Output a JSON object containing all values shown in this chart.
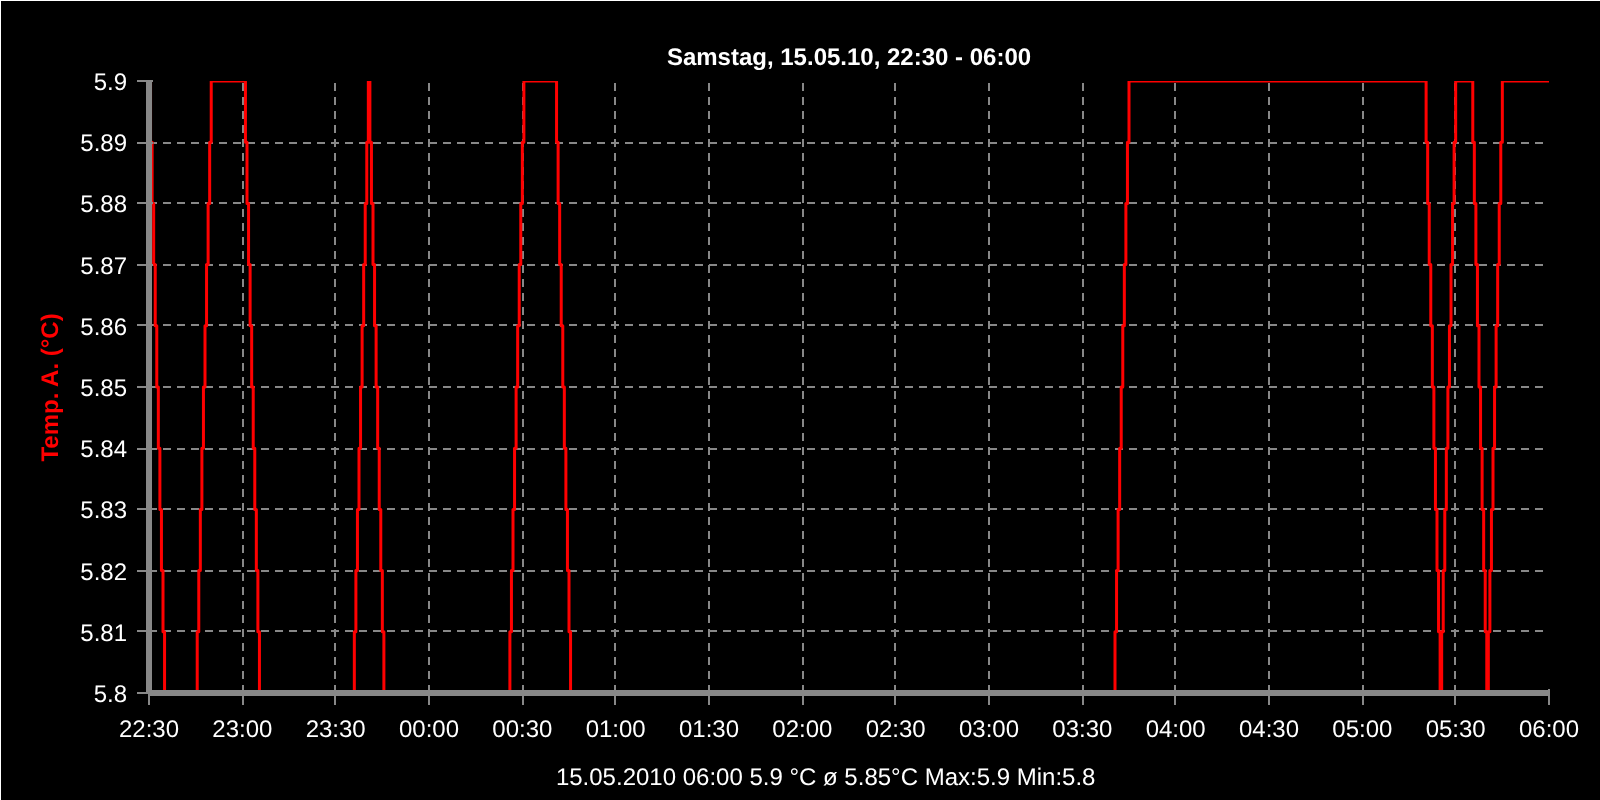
{
  "chart_data": {
    "type": "step",
    "title": "Samstag, 15.05.10, 22:30 - 06:00",
    "ylabel": "Temp. A. (°C)",
    "annotations": [
      "15.05.2010  06:00   5.9 °C   ø 5.85°C  Max:5.9  Min:5.8"
    ],
    "xlim": [
      "2010-05-15T22:30",
      "2010-05-16T06:00"
    ],
    "xticks": [
      {
        "value": "2010-05-15T22:30",
        "label": "22:30"
      },
      {
        "value": "2010-05-15T23:00",
        "label": "23:00"
      },
      {
        "value": "2010-05-15T23:30",
        "label": "23:30"
      },
      {
        "value": "2010-05-16T00:00",
        "label": "00:00"
      },
      {
        "value": "2010-05-16T00:30",
        "label": "00:30"
      },
      {
        "value": "2010-05-16T01:00",
        "label": "01:00"
      },
      {
        "value": "2010-05-16T01:30",
        "label": "01:30"
      },
      {
        "value": "2010-05-16T02:00",
        "label": "02:00"
      },
      {
        "value": "2010-05-16T02:30",
        "label": "02:30"
      },
      {
        "value": "2010-05-16T03:00",
        "label": "03:00"
      },
      {
        "value": "2010-05-16T03:30",
        "label": "03:30"
      },
      {
        "value": "2010-05-16T04:00",
        "label": "04:00"
      },
      {
        "value": "2010-05-16T04:30",
        "label": "04:30"
      },
      {
        "value": "2010-05-16T05:00",
        "label": "05:00"
      },
      {
        "value": "2010-05-16T05:30",
        "label": "05:30"
      },
      {
        "value": "2010-05-16T06:00",
        "label": "06:00"
      }
    ],
    "ylim": [
      5.8,
      5.9
    ],
    "yticks": [
      5.8,
      5.81,
      5.82,
      5.83,
      5.84,
      5.85,
      5.86,
      5.87,
      5.88,
      5.89,
      5.9
    ],
    "grid": true,
    "line_style": "solid",
    "series": [
      {
        "color": "#ff0000",
        "x": [
          "2010-05-15T22:30:00",
          "2010-05-15T22:30:30",
          "2010-05-15T22:31:00",
          "2010-05-15T22:31:30",
          "2010-05-15T22:32:00",
          "2010-05-15T22:32:30",
          "2010-05-15T22:33:00",
          "2010-05-15T22:33:30",
          "2010-05-15T22:34:00",
          "2010-05-15T22:34:30",
          "2010-05-15T22:35:00",
          "2010-05-15T22:45:30",
          "2010-05-15T22:46:00",
          "2010-05-15T22:46:30",
          "2010-05-15T22:47:00",
          "2010-05-15T22:47:30",
          "2010-05-15T22:48:00",
          "2010-05-15T22:48:30",
          "2010-05-15T22:49:00",
          "2010-05-15T22:49:30",
          "2010-05-15T22:50:00",
          "2010-05-15T23:01:00",
          "2010-05-15T23:01:30",
          "2010-05-15T23:02:00",
          "2010-05-15T23:02:30",
          "2010-05-15T23:03:00",
          "2010-05-15T23:03:30",
          "2010-05-15T23:04:00",
          "2010-05-15T23:04:30",
          "2010-05-15T23:05:00",
          "2010-05-15T23:05:30",
          "2010-05-15T23:36:00",
          "2010-05-15T23:36:30",
          "2010-05-15T23:37:00",
          "2010-05-15T23:37:30",
          "2010-05-15T23:38:00",
          "2010-05-15T23:38:30",
          "2010-05-15T23:39:00",
          "2010-05-15T23:39:30",
          "2010-05-15T23:40:00",
          "2010-05-15T23:40:30",
          "2010-05-15T23:41:00",
          "2010-05-15T23:41:30",
          "2010-05-15T23:42:00",
          "2010-05-15T23:42:30",
          "2010-05-15T23:43:00",
          "2010-05-15T23:43:30",
          "2010-05-15T23:44:00",
          "2010-05-15T23:44:30",
          "2010-05-15T23:45:00",
          "2010-05-15T23:45:30",
          "2010-05-16T00:26:00",
          "2010-05-16T00:26:30",
          "2010-05-16T00:27:00",
          "2010-05-16T00:27:30",
          "2010-05-16T00:28:00",
          "2010-05-16T00:28:30",
          "2010-05-16T00:29:00",
          "2010-05-16T00:29:30",
          "2010-05-16T00:30:00",
          "2010-05-16T00:30:30",
          "2010-05-16T00:41:00",
          "2010-05-16T00:41:30",
          "2010-05-16T00:42:00",
          "2010-05-16T00:42:30",
          "2010-05-16T00:43:00",
          "2010-05-16T00:43:30",
          "2010-05-16T00:44:00",
          "2010-05-16T00:44:30",
          "2010-05-16T00:45:00",
          "2010-05-16T00:45:30",
          "2010-05-16T03:40:30",
          "2010-05-16T03:41:00",
          "2010-05-16T03:41:30",
          "2010-05-16T03:42:00",
          "2010-05-16T03:42:30",
          "2010-05-16T03:43:00",
          "2010-05-16T03:43:30",
          "2010-05-16T03:44:00",
          "2010-05-16T03:44:30",
          "2010-05-16T03:45:00",
          "2010-05-16T05:20:30",
          "2010-05-16T05:21:00",
          "2010-05-16T05:21:30",
          "2010-05-16T05:22:00",
          "2010-05-16T05:22:30",
          "2010-05-16T05:23:00",
          "2010-05-16T05:23:30",
          "2010-05-16T05:24:00",
          "2010-05-16T05:24:30",
          "2010-05-16T05:25:00",
          "2010-05-16T05:25:30",
          "2010-05-16T05:26:00",
          "2010-05-16T05:26:30",
          "2010-05-16T05:27:00",
          "2010-05-16T05:27:30",
          "2010-05-16T05:28:00",
          "2010-05-16T05:28:30",
          "2010-05-16T05:29:00",
          "2010-05-16T05:29:30",
          "2010-05-16T05:30:00",
          "2010-05-16T05:35:30",
          "2010-05-16T05:36:00",
          "2010-05-16T05:36:30",
          "2010-05-16T05:37:00",
          "2010-05-16T05:37:30",
          "2010-05-16T05:38:00",
          "2010-05-16T05:38:30",
          "2010-05-16T05:39:00",
          "2010-05-16T05:39:30",
          "2010-05-16T05:40:00",
          "2010-05-16T05:40:30",
          "2010-05-16T05:41:00",
          "2010-05-16T05:41:30",
          "2010-05-16T05:42:00",
          "2010-05-16T05:42:30",
          "2010-05-16T05:43:00",
          "2010-05-16T05:43:30",
          "2010-05-16T05:44:00",
          "2010-05-16T05:44:30",
          "2010-05-16T05:45:00",
          "2010-05-16T06:00:00"
        ],
        "values": [
          5.9,
          5.89,
          5.88,
          5.87,
          5.86,
          5.85,
          5.84,
          5.83,
          5.82,
          5.81,
          5.8,
          5.81,
          5.82,
          5.83,
          5.84,
          5.85,
          5.86,
          5.87,
          5.88,
          5.89,
          5.9,
          5.89,
          5.88,
          5.87,
          5.86,
          5.85,
          5.84,
          5.83,
          5.82,
          5.81,
          5.8,
          5.81,
          5.82,
          5.83,
          5.84,
          5.85,
          5.86,
          5.87,
          5.88,
          5.89,
          5.9,
          5.89,
          5.88,
          5.87,
          5.86,
          5.85,
          5.84,
          5.83,
          5.82,
          5.81,
          5.8,
          5.81,
          5.82,
          5.83,
          5.84,
          5.85,
          5.86,
          5.87,
          5.88,
          5.89,
          5.9,
          5.89,
          5.88,
          5.87,
          5.86,
          5.85,
          5.84,
          5.83,
          5.82,
          5.81,
          5.8,
          5.81,
          5.82,
          5.83,
          5.84,
          5.85,
          5.86,
          5.87,
          5.88,
          5.89,
          5.9,
          5.89,
          5.88,
          5.87,
          5.86,
          5.85,
          5.84,
          5.83,
          5.82,
          5.81,
          5.8,
          5.81,
          5.82,
          5.83,
          5.84,
          5.85,
          5.86,
          5.87,
          5.88,
          5.89,
          5.9,
          5.89,
          5.88,
          5.87,
          5.86,
          5.85,
          5.84,
          5.83,
          5.82,
          5.81,
          5.8,
          5.81,
          5.82,
          5.83,
          5.84,
          5.85,
          5.86,
          5.87,
          5.88,
          5.89,
          5.9,
          5.9
        ]
      }
    ]
  }
}
